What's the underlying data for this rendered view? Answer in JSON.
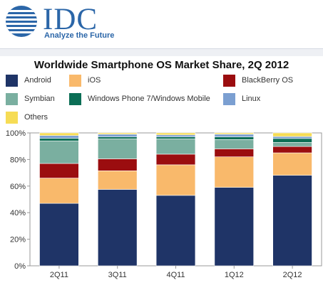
{
  "brand": {
    "name": "IDC",
    "tagline": "Analyze the Future",
    "logo_icon": "idc-globe-icon",
    "color": "#2b66a8"
  },
  "chart_data": {
    "type": "bar",
    "stacked": true,
    "title": "Worldwide Smartphone OS Market Share, 2Q 2012",
    "xlabel": "",
    "ylabel": "",
    "categories": [
      "2Q11",
      "3Q11",
      "4Q11",
      "1Q12",
      "2Q12"
    ],
    "ylim": [
      0,
      100
    ],
    "y_ticks": [
      "0%",
      "20%",
      "40%",
      "60%",
      "80%",
      "100%"
    ],
    "grid": false,
    "legend_position": "top",
    "series": [
      {
        "name": "Android",
        "color": "#1f3467",
        "values": [
          47,
          57.5,
          53,
          59,
          68.1
        ]
      },
      {
        "name": "iOS",
        "color": "#f9b96b",
        "values": [
          19,
          14,
          23,
          23,
          16.9
        ]
      },
      {
        "name": "BlackBerry OS",
        "color": "#9b0d0f",
        "values": [
          11,
          9,
          8,
          6,
          4.8
        ]
      },
      {
        "name": "Symbian",
        "color": "#7aafa0",
        "values": [
          17,
          15,
          11.5,
          7,
          3
        ]
      },
      {
        "name": "Windows Phone 7/Windows Mobile",
        "color": "#0b6e55",
        "values": [
          2,
          1.5,
          1.5,
          2,
          3
        ]
      },
      {
        "name": "Linux",
        "color": "#7b9fd1",
        "values": [
          2,
          2,
          1.5,
          2,
          1.5
        ]
      },
      {
        "name": "Others",
        "color": "#f6dc55",
        "values": [
          2,
          1,
          1.5,
          1,
          2.7
        ]
      }
    ]
  }
}
